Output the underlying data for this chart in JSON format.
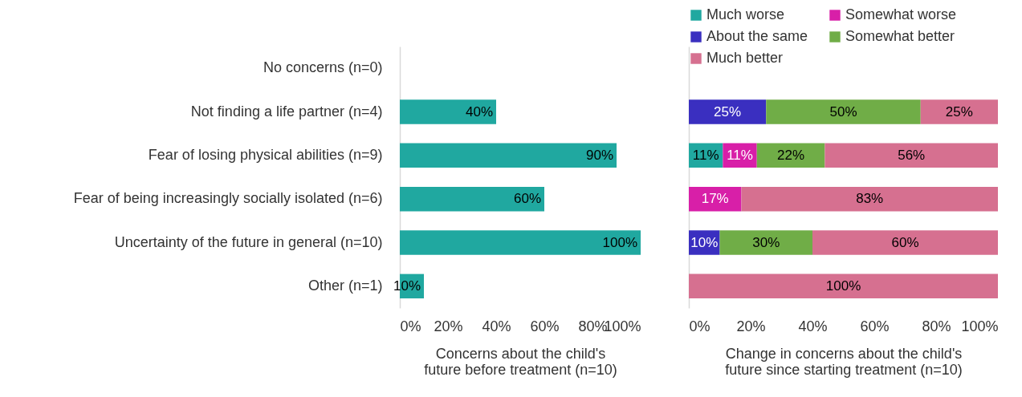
{
  "chart_data": [
    {
      "type": "bar",
      "orientation": "horizontal",
      "categories": [
        "No concerns (n=0)",
        "Not finding a life partner  (n=4)",
        "Fear of losing physical abilities (n=9)",
        "Fear of being increasingly socially isolated (n=6)",
        "Uncertainty of the future in general (n=10)",
        "Other (n=1)"
      ],
      "values": [
        null,
        40,
        90,
        60,
        100,
        10
      ],
      "color": "#20a8a0",
      "value_labels": [
        null,
        "40%",
        "90%",
        "60%",
        "100%",
        "10%"
      ],
      "xlim": [
        0,
        100
      ],
      "xticks": [
        {
          "value": 0,
          "label": "0%"
        },
        {
          "value": 20,
          "label": "20%"
        },
        {
          "value": 40,
          "label": "40%"
        },
        {
          "value": 60,
          "label": "60%"
        },
        {
          "value": 80,
          "label": "80%"
        },
        {
          "value": 100,
          "label": "100%"
        }
      ],
      "xlabel": "Concerns about the child's future before treatment (n=10)"
    },
    {
      "type": "bar",
      "orientation": "horizontal",
      "stacked": true,
      "legend": "top",
      "tick_labels": "x",
      "categories": [
        null,
        null,
        null,
        null,
        null,
        null
      ],
      "series": [
        {
          "name": "Much worse",
          "color": "#20a8a0",
          "values": [
            null,
            null,
            11,
            null,
            null,
            null
          ],
          "value_labels": [
            null,
            null,
            "11%",
            null,
            null,
            null
          ]
        },
        {
          "name": "Somewhat worse",
          "color": "#d81fa8",
          "values": [
            null,
            null,
            11,
            17,
            null,
            null
          ],
          "value_labels": [
            null,
            null,
            "11%",
            "17%",
            null,
            null
          ]
        },
        {
          "name": "About the same",
          "color": "#3a2fc0",
          "values": [
            null,
            25,
            null,
            null,
            10,
            null
          ],
          "value_labels": [
            null,
            "25%",
            null,
            null,
            "10%",
            null
          ]
        },
        {
          "name": "Somewhat better",
          "color": "#70ad47",
          "values": [
            null,
            50,
            22,
            null,
            30,
            null
          ],
          "value_labels": [
            null,
            "50%",
            "22%",
            null,
            "30%",
            null
          ]
        },
        {
          "name": "Much better",
          "color": "#d67090",
          "values": [
            null,
            25,
            56,
            83,
            60,
            100
          ],
          "value_labels": [
            null,
            "25%",
            "56%",
            "83%",
            "60%",
            "100%"
          ]
        }
      ],
      "xlim": [
        0,
        100
      ],
      "xticks": [
        {
          "value": 0,
          "label": "0%"
        },
        {
          "value": 20,
          "label": "20%"
        },
        {
          "value": 40,
          "label": "40%"
        },
        {
          "value": 60,
          "label": "60%"
        },
        {
          "value": 80,
          "label": "80%"
        },
        {
          "value": 100,
          "label": "100%"
        }
      ],
      "xlabel": "Change in concerns about the child's future since starting treatment (n=10)"
    }
  ]
}
